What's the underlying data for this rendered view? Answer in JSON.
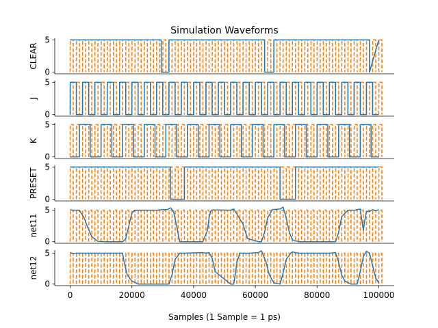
{
  "chart_data": {
    "type": "line",
    "title": "Simulation Waveforms",
    "xlabel": "Samples (1 Sample = 1 ps)",
    "xlim": [
      -5000,
      105000
    ],
    "xticks": [
      0,
      20000,
      40000,
      60000,
      80000,
      100000
    ],
    "xtick_labels": [
      "0",
      "20000",
      "40000",
      "60000",
      "80000",
      "100000"
    ],
    "clock_period": 2000,
    "colors": {
      "signal": "#1f77b4",
      "clock": "#ff7f0e"
    },
    "panels": [
      {
        "ylabel": "CLEAR",
        "ylim": [
          -0.25,
          5.25
        ],
        "yticks": [
          0,
          5
        ],
        "series": {
          "kind": "digital",
          "x": [
            0,
            29500,
            29500,
            32000,
            32000,
            63000,
            63000,
            66000,
            66000,
            97000,
            97000,
            100000
          ],
          "y": [
            5,
            5,
            0,
            0,
            5,
            5,
            0,
            0,
            5,
            5,
            0,
            5
          ]
        }
      },
      {
        "ylabel": "J",
        "ylim": [
          -0.25,
          5.25
        ],
        "yticks": [
          0,
          5
        ],
        "series": {
          "kind": "square",
          "period": 4000,
          "duty": 0.5,
          "phase": 0,
          "high": 5,
          "low": 0
        }
      },
      {
        "ylabel": "K",
        "ylim": [
          -0.25,
          5.25
        ],
        "yticks": [
          0,
          5
        ],
        "series": {
          "kind": "square",
          "period": 7000,
          "duty": 0.5,
          "phase": 3000,
          "high": 5,
          "low": 0
        }
      },
      {
        "ylabel": "PRESET",
        "ylim": [
          -0.25,
          5.25
        ],
        "yticks": [
          0,
          5
        ],
        "series": {
          "kind": "digital",
          "x": [
            0,
            32500,
            32500,
            37000,
            37000,
            68000,
            68000,
            73000,
            73000,
            100000
          ],
          "y": [
            5,
            5,
            0,
            0,
            5,
            5,
            0,
            0,
            5,
            5
          ]
        }
      },
      {
        "ylabel": "net11",
        "ylim": [
          -0.25,
          5.4
        ],
        "yticks": [
          0,
          5
        ],
        "series": {
          "kind": "analog",
          "x": [
            0,
            1000,
            3000,
            4500,
            5500,
            7000,
            9000,
            12000,
            17000,
            18000,
            19000,
            20000,
            21000,
            28000,
            30000,
            31500,
            32500,
            33500,
            34500,
            35500,
            43000,
            44500,
            45000,
            45500,
            46000,
            48000,
            52000,
            53000,
            56000,
            57500,
            61000,
            62000,
            63000,
            64000,
            65500,
            68000,
            69000,
            70000,
            71000,
            72000,
            74000,
            78000,
            86000,
            87000,
            88000,
            90000,
            92000,
            94000,
            94500,
            95000,
            95500,
            96000,
            97000,
            98000,
            99000,
            100000
          ],
          "y": [
            5.1,
            5,
            5,
            3.8,
            2.5,
            0.8,
            0.05,
            0,
            0,
            0.5,
            2.5,
            4.6,
            5,
            5,
            5.1,
            5.1,
            5.4,
            4.8,
            2.5,
            0,
            0,
            1.8,
            3.8,
            4.8,
            5.05,
            5.05,
            5,
            5.2,
            2.8,
            0.5,
            0,
            0,
            1.5,
            3.8,
            5.1,
            5.2,
            5.5,
            3.8,
            1.5,
            0.3,
            0,
            0,
            0,
            1.5,
            4,
            5,
            5,
            5.2,
            3.5,
            1.8,
            3.5,
            4.8,
            4.8,
            5.1,
            4.9,
            5.1
          ]
        }
      },
      {
        "ylabel": "net12",
        "ylim": [
          -0.25,
          5.5
        ],
        "yticks": [
          0,
          5
        ],
        "series": {
          "kind": "analog",
          "x": [
            0,
            1000,
            2000,
            16000,
            17000,
            17500,
            18500,
            20000,
            22000,
            30000,
            32000,
            33000,
            34000,
            35500,
            37000,
            43000,
            44000,
            45000,
            46000,
            47000,
            52000,
            53000,
            53500,
            54000,
            55000,
            58000,
            61000,
            62000,
            63500,
            64500,
            66000,
            68000,
            69000,
            70000,
            71500,
            72000,
            74000,
            78000,
            84000,
            86000,
            87000,
            88000,
            89000,
            91000,
            93000,
            94000,
            95000,
            96000,
            97000,
            98000,
            99000,
            100000
          ],
          "y": [
            5.1,
            4.9,
            5,
            5,
            5,
            3.5,
            1.5,
            0.5,
            0,
            0,
            0,
            1.5,
            4,
            5,
            5,
            5.1,
            5,
            5.1,
            4.2,
            2,
            0,
            0,
            1.5,
            3.5,
            5,
            5,
            5.1,
            5.4,
            3.5,
            1.5,
            0.2,
            0,
            1.8,
            4,
            5,
            5.2,
            5,
            5,
            5,
            5.1,
            3.5,
            1.5,
            0.5,
            0,
            0,
            2,
            4.5,
            5.3,
            5,
            3,
            1,
            0.2
          ]
        }
      }
    ]
  }
}
